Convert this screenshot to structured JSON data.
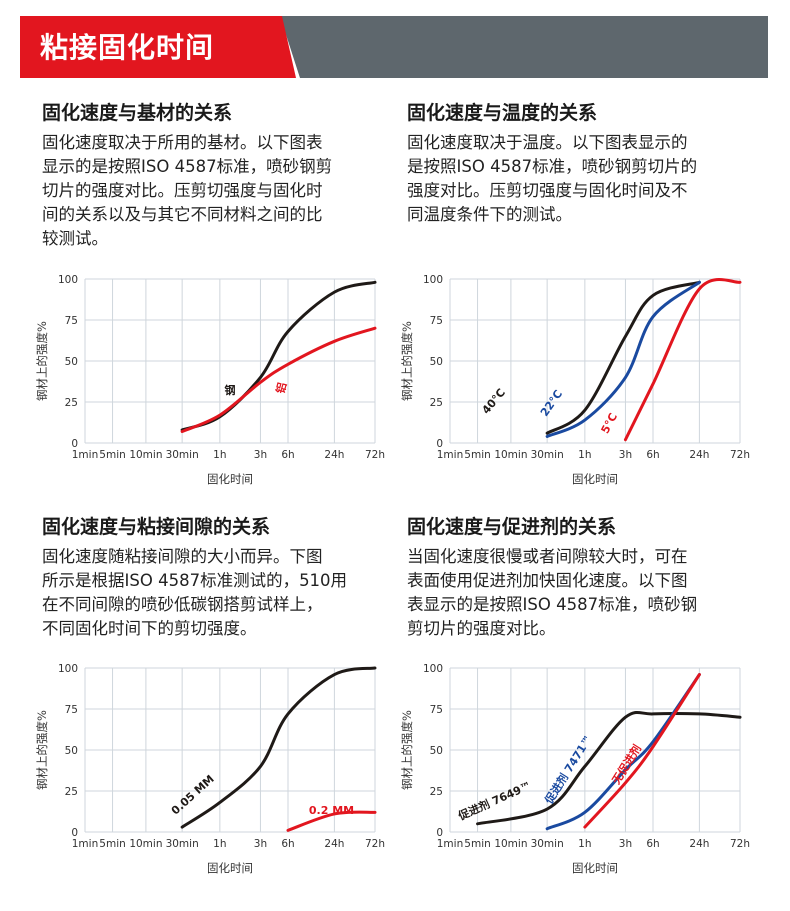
{
  "banner": {
    "title": "粘接固化时间"
  },
  "colors": {
    "red": "#e2161f",
    "black": "#1f1a17",
    "blue": "#1a4aa0",
    "grey": "#5e676d",
    "grid": "#cfd6dc"
  },
  "sections": [
    {
      "title": "固化速度与基材的关系",
      "lines": [
        "固化速度取决于所用的基材。以下图表",
        "显示的是按照ISO 4587标准，喷砂钢剪",
        "切片的强度对比。压剪切强度与固化时",
        "间的关系以及与其它不同材料之间的比",
        "较测试。"
      ]
    },
    {
      "title": "固化速度与温度的关系",
      "lines": [
        "固化速度取决于温度。以下图表显示的",
        "是按照ISO 4587标准，喷砂钢剪切片的",
        "强度对比。压剪切强度与固化时间及不",
        "同温度条件下的测试。"
      ]
    },
    {
      "title": "固化速度与粘接间隙的关系",
      "lines": [
        "固化速度随粘接间隙的大小而异。下图",
        "所示是根据ISO 4587标准测试的，510用",
        "在不同间隙的喷砂低碳钢搭剪试样上，",
        "不同固化时间下的剪切强度。"
      ]
    },
    {
      "title": "固化速度与促进剂的关系",
      "lines": [
        "当固化速度很慢或者间隙较大时，可在",
        "表面使用促进剂加快固化速度。以下图",
        "表显示的是按照ISO 4587标准，喷砂钢",
        "剪切片的强度对比。"
      ]
    }
  ],
  "chart_data": [
    {
      "type": "line",
      "xlabel": "固化时间",
      "ylabel": "钢材上的强度%",
      "x_ticks": [
        "1min",
        "5min",
        "10min",
        "30min",
        "1h",
        "3h",
        "6h",
        "24h",
        "72h"
      ],
      "y_ticks": [
        0,
        25,
        50,
        75,
        100
      ],
      "ylim": [
        0,
        100
      ],
      "grid": true,
      "series": [
        {
          "name": "钢",
          "color": "#1f1a17",
          "points": [
            [
              "30min",
              8
            ],
            [
              "1h",
              16
            ],
            [
              "3h",
              40
            ],
            [
              "6h",
              68
            ],
            [
              "24h",
              92
            ],
            [
              "72h",
              98
            ]
          ]
        },
        {
          "name": "铝",
          "color": "#e2161f",
          "points": [
            [
              "30min",
              7
            ],
            [
              "1h",
              17
            ],
            [
              "3h",
              37
            ],
            [
              "6h",
              48
            ],
            [
              "24h",
              62
            ],
            [
              "72h",
              70
            ]
          ]
        }
      ]
    },
    {
      "type": "line",
      "xlabel": "固化时间",
      "ylabel": "钢材上的强度%",
      "x_ticks": [
        "1min",
        "5min",
        "10min",
        "30min",
        "1h",
        "3h",
        "6h",
        "24h",
        "72h"
      ],
      "y_ticks": [
        0,
        25,
        50,
        75,
        100
      ],
      "ylim": [
        0,
        100
      ],
      "grid": true,
      "series": [
        {
          "name": "40°C",
          "color": "#1f1a17",
          "points": [
            [
              "30min",
              6
            ],
            [
              "1h",
              20
            ],
            [
              "3h",
              65
            ],
            [
              "6h",
              90
            ],
            [
              "24h",
              98
            ]
          ]
        },
        {
          "name": "22°C",
          "color": "#1a4aa0",
          "points": [
            [
              "30min",
              4
            ],
            [
              "1h",
              14
            ],
            [
              "3h",
              40
            ],
            [
              "6h",
              77
            ],
            [
              "24h",
              98
            ]
          ]
        },
        {
          "name": "5°C",
          "color": "#e2161f",
          "points": [
            [
              "3h",
              2
            ],
            [
              "6h",
              36
            ],
            [
              "24h",
              94
            ],
            [
              "72h",
              98
            ]
          ]
        }
      ]
    },
    {
      "type": "line",
      "xlabel": "固化时间",
      "ylabel": "钢材上的强度%",
      "x_ticks": [
        "1min",
        "5min",
        "10min",
        "30min",
        "1h",
        "3h",
        "6h",
        "24h",
        "72h"
      ],
      "y_ticks": [
        0,
        25,
        50,
        75,
        100
      ],
      "ylim": [
        0,
        100
      ],
      "grid": true,
      "series": [
        {
          "name": "0.05 MM",
          "color": "#1f1a17",
          "points": [
            [
              "30min",
              3
            ],
            [
              "1h",
              18
            ],
            [
              "3h",
              40
            ],
            [
              "6h",
              72
            ],
            [
              "24h",
              96
            ],
            [
              "72h",
              100
            ]
          ]
        },
        {
          "name": "0.2 MM",
          "color": "#e2161f",
          "points": [
            [
              "6h",
              1
            ],
            [
              "24h",
              11
            ],
            [
              "72h",
              12
            ]
          ]
        }
      ]
    },
    {
      "type": "line",
      "xlabel": "固化时间",
      "ylabel": "钢材上的强度%",
      "x_ticks": [
        "1min",
        "5min",
        "10min",
        "30min",
        "1h",
        "3h",
        "6h",
        "24h",
        "72h"
      ],
      "y_ticks": [
        0,
        25,
        50,
        75,
        100
      ],
      "ylim": [
        0,
        100
      ],
      "grid": true,
      "series": [
        {
          "name": "促进剂 7649™",
          "color": "#1f1a17",
          "points": [
            [
              "5min",
              5
            ],
            [
              "30min",
              14
            ],
            [
              "1h",
              40
            ],
            [
              "3h",
              70
            ],
            [
              "6h",
              72
            ],
            [
              "24h",
              72
            ],
            [
              "72h",
              70
            ]
          ]
        },
        {
          "name": "促进剂 7471™",
          "color": "#1a4aa0",
          "points": [
            [
              "30min",
              2
            ],
            [
              "1h",
              12
            ],
            [
              "3h",
              38
            ],
            [
              "6h",
              55
            ],
            [
              "24h",
              96
            ]
          ]
        },
        {
          "name": "无促进剂",
          "color": "#e2161f",
          "points": [
            [
              "1h",
              3
            ],
            [
              "3h",
              30
            ],
            [
              "6h",
              52
            ],
            [
              "24h",
              96
            ]
          ]
        }
      ]
    }
  ]
}
